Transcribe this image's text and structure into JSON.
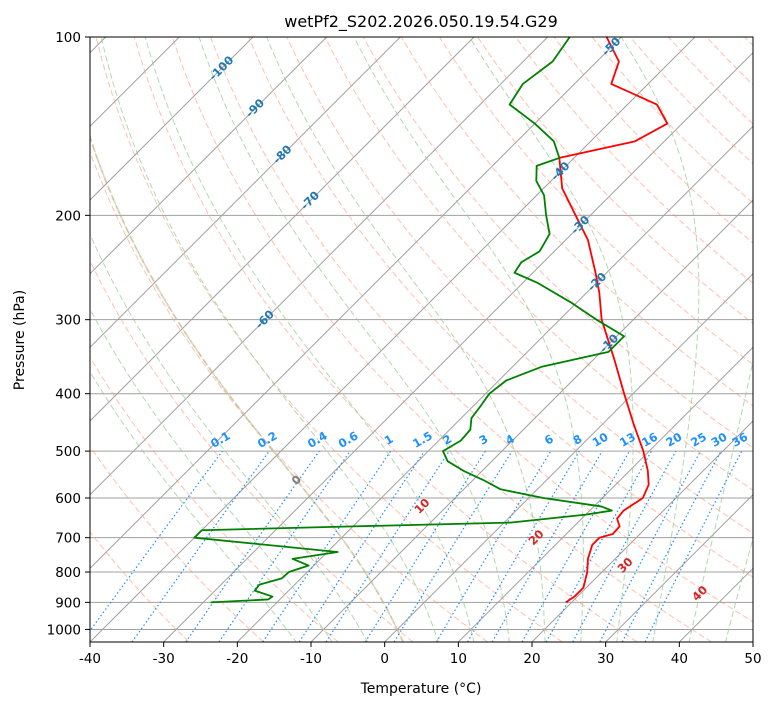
{
  "chart_data": {
    "type": "line",
    "subtype": "skew-T log-P",
    "title": "wetPf2_S202.2026.050.19.54.G29",
    "xlabel": "Temperature (°C)",
    "ylabel": "Pressure (hPa)",
    "xlim": [
      -40,
      50
    ],
    "ylim": [
      1050,
      100
    ],
    "x_ticks": [
      "-40",
      "-30",
      "-20",
      "-10",
      "0",
      "10",
      "20",
      "30",
      "40",
      "50"
    ],
    "y_ticks": [
      "100",
      "200",
      "300",
      "400",
      "500",
      "600",
      "700",
      "800",
      "900",
      "1000"
    ],
    "grid": true,
    "colors": {
      "temperature": "#ff0000",
      "dewpoint": "#008000",
      "isotherm_label": "#1f77b4",
      "mixing_ratio": "#1e90ff",
      "dry_adiabat": "#ff8c69",
      "moist_adiabat": "#90c890",
      "wet_bulb_zero": "#d2b48c",
      "isotherm_line": "#a0a0a0",
      "moist_label": "#d62728",
      "grey_label": "#808080"
    },
    "isotherm_labels": [
      "-100",
      "-90",
      "-80",
      "-70",
      "-60",
      "-50",
      "-40",
      "-30",
      "-20",
      "-10"
    ],
    "mixing_ratio_labels": [
      "0.1",
      "0.2",
      "0.4",
      "0.6",
      "1",
      "1.5",
      "2",
      "3",
      "4",
      "6",
      "8",
      "10",
      "13",
      "16",
      "20",
      "25",
      "30",
      "36"
    ],
    "moist_adiabat_labels": [
      "0",
      "10",
      "20",
      "30",
      "40"
    ],
    "series": [
      {
        "name": "Temperature",
        "points": [
          {
            "p": 900,
            "t": 19.2
          },
          {
            "p": 880,
            "t": 19.6
          },
          {
            "p": 850,
            "t": 19.6
          },
          {
            "p": 800,
            "t": 18.0
          },
          {
            "p": 760,
            "t": 16.3
          },
          {
            "p": 720,
            "t": 15.0
          },
          {
            "p": 700,
            "t": 15.0
          },
          {
            "p": 690,
            "t": 16.3
          },
          {
            "p": 670,
            "t": 16.2
          },
          {
            "p": 650,
            "t": 14.8
          },
          {
            "p": 630,
            "t": 14.6
          },
          {
            "p": 600,
            "t": 15.5
          },
          {
            "p": 570,
            "t": 14.5
          },
          {
            "p": 540,
            "t": 12.5
          },
          {
            "p": 500,
            "t": 9.2
          },
          {
            "p": 450,
            "t": 4.2
          },
          {
            "p": 400,
            "t": -1.2
          },
          {
            "p": 350,
            "t": -7.2
          },
          {
            "p": 300,
            "t": -14.3
          },
          {
            "p": 270,
            "t": -18.3
          },
          {
            "p": 250,
            "t": -21.5
          },
          {
            "p": 220,
            "t": -27.0
          },
          {
            "p": 200,
            "t": -32.0
          },
          {
            "p": 180,
            "t": -37.5
          },
          {
            "p": 160,
            "t": -42.0
          },
          {
            "p": 150,
            "t": -34.0
          },
          {
            "p": 140,
            "t": -32.0
          },
          {
            "p": 130,
            "t": -36.0
          },
          {
            "p": 120,
            "t": -45.0
          },
          {
            "p": 110,
            "t": -47.0
          },
          {
            "p": 100,
            "t": -52.0
          }
        ]
      },
      {
        "name": "Dewpoint",
        "points": [
          {
            "p": 900,
            "t": -29.0
          },
          {
            "p": 890,
            "t": -21.6
          },
          {
            "p": 880,
            "t": -21.4
          },
          {
            "p": 860,
            "t": -24.6
          },
          {
            "p": 840,
            "t": -24.8
          },
          {
            "p": 820,
            "t": -22.6
          },
          {
            "p": 800,
            "t": -22.5
          },
          {
            "p": 780,
            "t": -20.7
          },
          {
            "p": 760,
            "t": -23.8
          },
          {
            "p": 740,
            "t": -18.6
          },
          {
            "p": 700,
            "t": -40.0
          },
          {
            "p": 690,
            "t": -40.0
          },
          {
            "p": 680,
            "t": -40.0
          },
          {
            "p": 670,
            "t": -20.0
          },
          {
            "p": 660,
            "t": 1.0
          },
          {
            "p": 640,
            "t": 10.0
          },
          {
            "p": 630,
            "t": 13.0
          },
          {
            "p": 620,
            "t": 11.0
          },
          {
            "p": 600,
            "t": 2.0
          },
          {
            "p": 580,
            "t": -5.0
          },
          {
            "p": 560,
            "t": -8.5
          },
          {
            "p": 540,
            "t": -12.5
          },
          {
            "p": 520,
            "t": -16.0
          },
          {
            "p": 500,
            "t": -18.0
          },
          {
            "p": 480,
            "t": -17.0
          },
          {
            "p": 460,
            "t": -17.2
          },
          {
            "p": 440,
            "t": -18.6
          },
          {
            "p": 420,
            "t": -19.0
          },
          {
            "p": 400,
            "t": -19.5
          },
          {
            "p": 380,
            "t": -19.0
          },
          {
            "p": 360,
            "t": -16.0
          },
          {
            "p": 340,
            "t": -9.0
          },
          {
            "p": 320,
            "t": -9.0
          },
          {
            "p": 300,
            "t": -15.0
          },
          {
            "p": 280,
            "t": -21.0
          },
          {
            "p": 260,
            "t": -28.0
          },
          {
            "p": 250,
            "t": -32.5
          },
          {
            "p": 240,
            "t": -33.0
          },
          {
            "p": 230,
            "t": -32.0
          },
          {
            "p": 215,
            "t": -33.0
          },
          {
            "p": 200,
            "t": -36.0
          },
          {
            "p": 185,
            "t": -39.0
          },
          {
            "p": 175,
            "t": -42.0
          },
          {
            "p": 165,
            "t": -44.0
          },
          {
            "p": 160,
            "t": -42.0
          },
          {
            "p": 150,
            "t": -45.0
          },
          {
            "p": 140,
            "t": -50.0
          },
          {
            "p": 130,
            "t": -56.0
          },
          {
            "p": 120,
            "t": -57.0
          },
          {
            "p": 110,
            "t": -56.0
          },
          {
            "p": 100,
            "t": -57.0
          }
        ]
      }
    ]
  }
}
